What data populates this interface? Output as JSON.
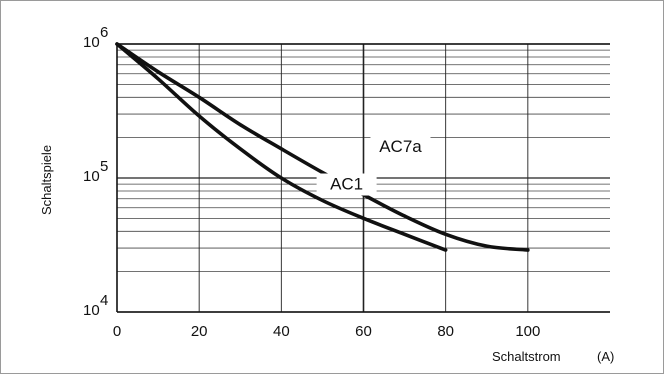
{
  "chart_data": {
    "type": "line",
    "title": "",
    "xlabel": "Schaltstrom",
    "xunit": "(A)",
    "ylabel": "Schaltspiele",
    "xlim": [
      0,
      120
    ],
    "ylim": [
      10000,
      1000000
    ],
    "yscale": "log",
    "grid": true,
    "x_ticks": [
      "0",
      "20",
      "40",
      "60",
      "80",
      "100"
    ],
    "y_ticks": [
      {
        "base": "10",
        "exp": "4",
        "value": 10000
      },
      {
        "base": "10",
        "exp": "5",
        "value": 100000
      },
      {
        "base": "10",
        "exp": "6",
        "value": 1000000
      }
    ],
    "series": [
      {
        "name": "AC7a",
        "x": [
          0,
          10,
          20,
          30,
          40,
          50,
          60,
          70,
          80,
          90,
          100
        ],
        "y": [
          1000000,
          620000,
          400000,
          250000,
          165000,
          110000,
          75000,
          52000,
          38000,
          31000,
          29000
        ]
      },
      {
        "name": "AC1",
        "x": [
          0,
          10,
          20,
          30,
          40,
          50,
          60,
          70,
          80
        ],
        "y": [
          1000000,
          550000,
          290000,
          165000,
          100000,
          68000,
          50000,
          38000,
          29000
        ]
      }
    ]
  }
}
